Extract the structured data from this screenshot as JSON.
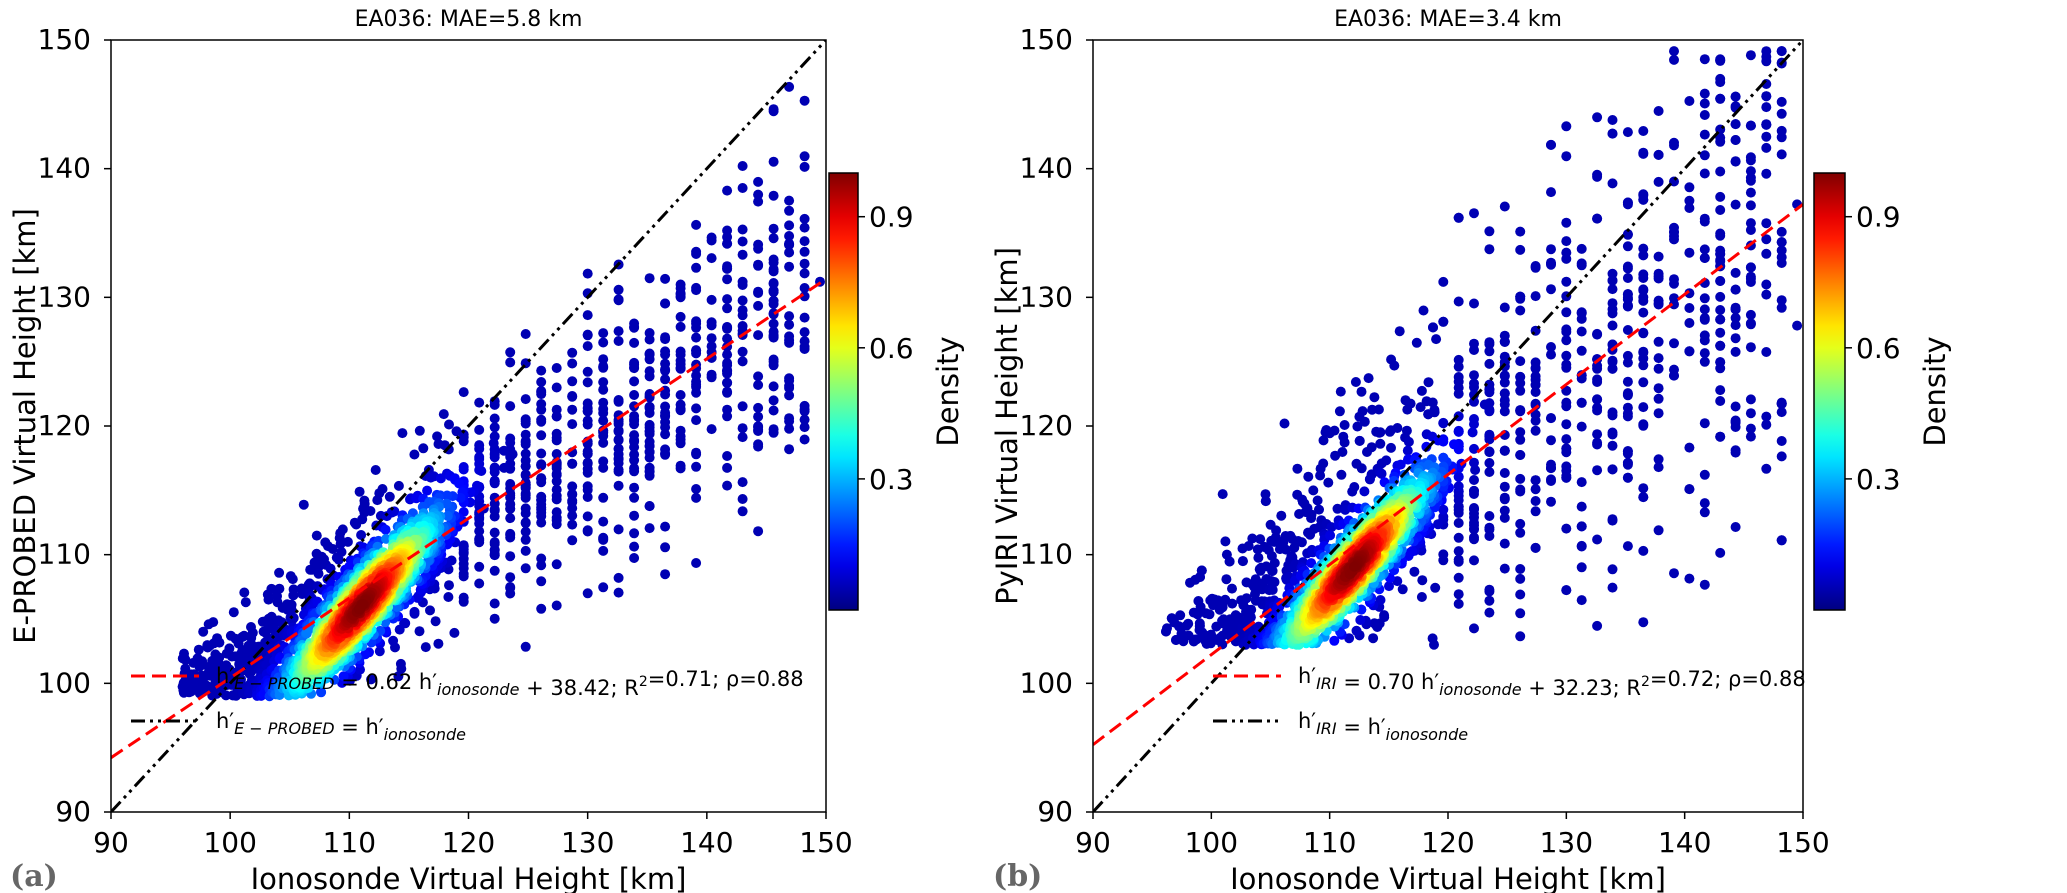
{
  "chart_data": [
    {
      "type": "scatter",
      "panel_label": "(a)",
      "title": "EA036: MAE=5.8 km",
      "xlabel": "Ionosonde Virtual Height [km]",
      "ylabel": "E-PROBED Virtual Height [km]",
      "xlim": [
        90,
        150
      ],
      "ylim": [
        90,
        150
      ],
      "xticks": [
        90,
        100,
        110,
        120,
        130,
        140,
        150
      ],
      "yticks": [
        90,
        100,
        110,
        120,
        130,
        140,
        150
      ],
      "grid": false,
      "legend_position": "lower-left",
      "density_peak": {
        "x": 111,
        "y": 106
      },
      "fit": {
        "slope": 0.62,
        "intercept": 38.42,
        "r2": 0.71,
        "rho": 0.88,
        "color": "#ff0000",
        "style": "dashed"
      },
      "identity": {
        "slope": 1,
        "intercept": 0,
        "color": "#000000",
        "style": "dash-dot"
      },
      "legend": [
        {
          "parts": [
            {
              "t": "h′"
            },
            {
              "t": "E − PROBED",
              "sub": true
            },
            {
              "t": " = 0.62 h′"
            },
            {
              "t": "ionosonde",
              "sub": true
            },
            {
              "t": " + 38.42; R"
            },
            {
              "t": "2",
              "sup": true
            },
            {
              "t": "=0.71; ρ=0.88"
            }
          ]
        },
        {
          "parts": [
            {
              "t": "h′"
            },
            {
              "t": "E − PROBED",
              "sub": true
            },
            {
              "t": " = h′"
            },
            {
              "t": "ionosonde",
              "sub": true
            }
          ]
        }
      ],
      "colorbar": {
        "label": "Density",
        "range": [
          0,
          1
        ],
        "ticks": [
          0.3,
          0.6,
          0.9
        ],
        "colormap": "jet"
      }
    },
    {
      "type": "scatter",
      "panel_label": "(b)",
      "title": "EA036: MAE=3.4 km",
      "xlabel": "Ionosonde Virtual Height [km]",
      "ylabel": "PyIRI Virtual Height [km]",
      "xlim": [
        90,
        150
      ],
      "ylim": [
        90,
        150
      ],
      "xticks": [
        90,
        100,
        110,
        120,
        130,
        140,
        150
      ],
      "yticks": [
        90,
        100,
        110,
        120,
        130,
        140,
        150
      ],
      "grid": false,
      "legend_position": "lower-center",
      "density_peak": {
        "x": 112,
        "y": 109
      },
      "fit": {
        "slope": 0.7,
        "intercept": 32.23,
        "r2": 0.72,
        "rho": 0.88,
        "color": "#ff0000",
        "style": "dashed"
      },
      "identity": {
        "slope": 1,
        "intercept": 0,
        "color": "#000000",
        "style": "dash-dot"
      },
      "legend": [
        {
          "parts": [
            {
              "t": "h′"
            },
            {
              "t": "IRI",
              "sub": true
            },
            {
              "t": " = 0.70 h′"
            },
            {
              "t": "ionosonde",
              "sub": true
            },
            {
              "t": " + 32.23; R"
            },
            {
              "t": "2",
              "sup": true
            },
            {
              "t": "=0.72; ρ=0.88"
            }
          ]
        },
        {
          "parts": [
            {
              "t": "h′"
            },
            {
              "t": "IRI",
              "sub": true
            },
            {
              "t": " = h′"
            },
            {
              "t": "ionosonde",
              "sub": true
            }
          ]
        }
      ],
      "colorbar": {
        "label": "Density",
        "range": [
          0,
          1
        ],
        "ticks": [
          0.3,
          0.6,
          0.9
        ],
        "colormap": "jet"
      }
    }
  ]
}
